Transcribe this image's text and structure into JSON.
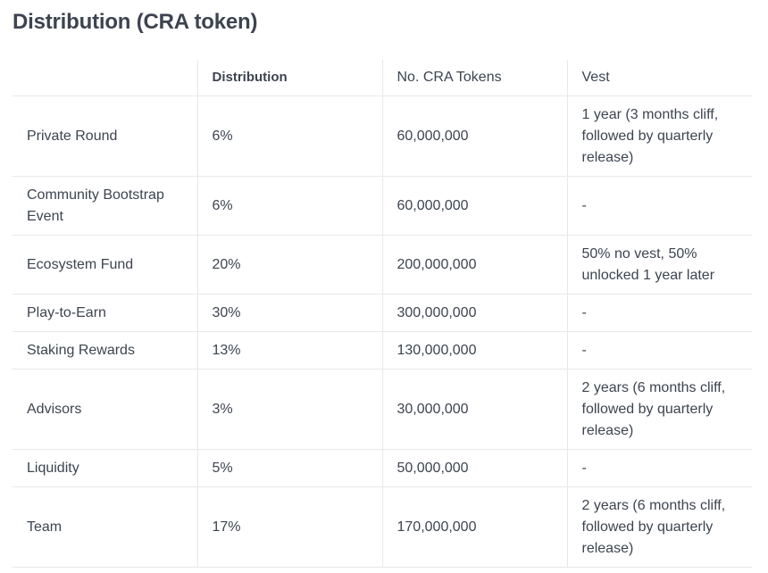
{
  "title": "Distribution (CRA token)",
  "table": {
    "headers": [
      "",
      "Distribution",
      "No. CRA Tokens",
      "Vest"
    ],
    "rows": [
      {
        "name": "Private Round",
        "distribution": "6%",
        "tokens": "60,000,000",
        "vest": "1 year (3 months cliff, followed by quarterly release)"
      },
      {
        "name": "Community Bootstrap Event",
        "distribution": "6%",
        "tokens": "60,000,000",
        "vest": "-"
      },
      {
        "name": "Ecosystem Fund",
        "distribution": "20%",
        "tokens": "200,000,000",
        "vest": "50% no vest, 50% unlocked 1 year later"
      },
      {
        "name": "Play-to-Earn",
        "distribution": "30%",
        "tokens": "300,000,000",
        "vest": "-"
      },
      {
        "name": "Staking Rewards",
        "distribution": "13%",
        "tokens": "130,000,000",
        "vest": "-"
      },
      {
        "name": "Advisors",
        "distribution": "3%",
        "tokens": "30,000,000",
        "vest": "2 years (6 months cliff, followed by quarterly release)"
      },
      {
        "name": "Liquidity",
        "distribution": "5%",
        "tokens": "50,000,000",
        "vest": "-"
      },
      {
        "name": "Team",
        "distribution": "17%",
        "tokens": "170,000,000",
        "vest": "2 years (6 months cliff, followed by quarterly release)"
      }
    ]
  }
}
